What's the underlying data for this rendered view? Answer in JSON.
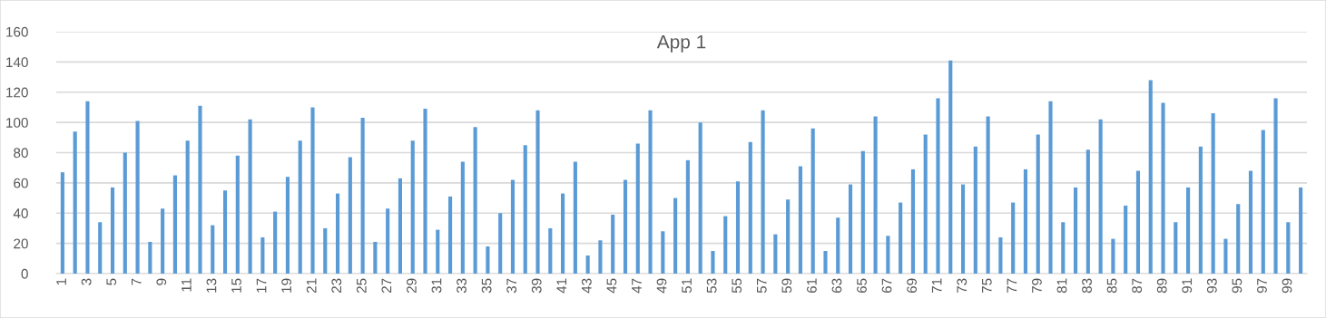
{
  "chart_data": {
    "type": "bar",
    "title": "App 1",
    "categories": [
      "1",
      null,
      "3",
      null,
      "5",
      null,
      "7",
      null,
      "9",
      null,
      "11",
      null,
      "13",
      null,
      "15",
      null,
      "17",
      null,
      "19",
      null,
      "21",
      null,
      "23",
      null,
      "25",
      null,
      "27",
      null,
      "29",
      null,
      "31",
      null,
      "33",
      null,
      "35",
      null,
      "37",
      null,
      "39",
      null,
      "41",
      null,
      "43",
      null,
      "45",
      null,
      "47",
      null,
      "49",
      null,
      "51",
      null,
      "53",
      null,
      "55",
      null,
      "57",
      null,
      "59",
      null,
      "61",
      null,
      "63",
      null,
      "65",
      null,
      "67",
      null,
      "69",
      null,
      "71",
      null,
      "73",
      null,
      "75",
      null,
      "77",
      null,
      "79",
      null,
      "81",
      null,
      "83",
      null,
      "85",
      null,
      "87",
      null,
      "89",
      null,
      "91",
      null,
      "93",
      null,
      "95",
      null,
      "97",
      null,
      "99",
      null
    ],
    "values": [
      67,
      94,
      114,
      34,
      57,
      80,
      101,
      21,
      43,
      65,
      88,
      111,
      32,
      55,
      78,
      102,
      24,
      41,
      64,
      88,
      110,
      30,
      53,
      77,
      103,
      21,
      43,
      63,
      88,
      109,
      29,
      51,
      74,
      97,
      18,
      40,
      62,
      85,
      108,
      30,
      53,
      74,
      12,
      22,
      39,
      62,
      86,
      108,
      28,
      50,
      75,
      100,
      15,
      38,
      61,
      87,
      108,
      26,
      49,
      71,
      96,
      15,
      37,
      59,
      81,
      104,
      25,
      47,
      69,
      92,
      116,
      141,
      59,
      84,
      104,
      24,
      47,
      69,
      92,
      114,
      34,
      57,
      82,
      102,
      23,
      45,
      68,
      128,
      113,
      34,
      57,
      84,
      106,
      23,
      46,
      68,
      95,
      116,
      34,
      57
    ],
    "color": "#5b9bd5",
    "ylim": [
      0,
      160
    ],
    "yticks": [
      0,
      20,
      40,
      60,
      80,
      100,
      120,
      140,
      160
    ],
    "grid": "y"
  }
}
